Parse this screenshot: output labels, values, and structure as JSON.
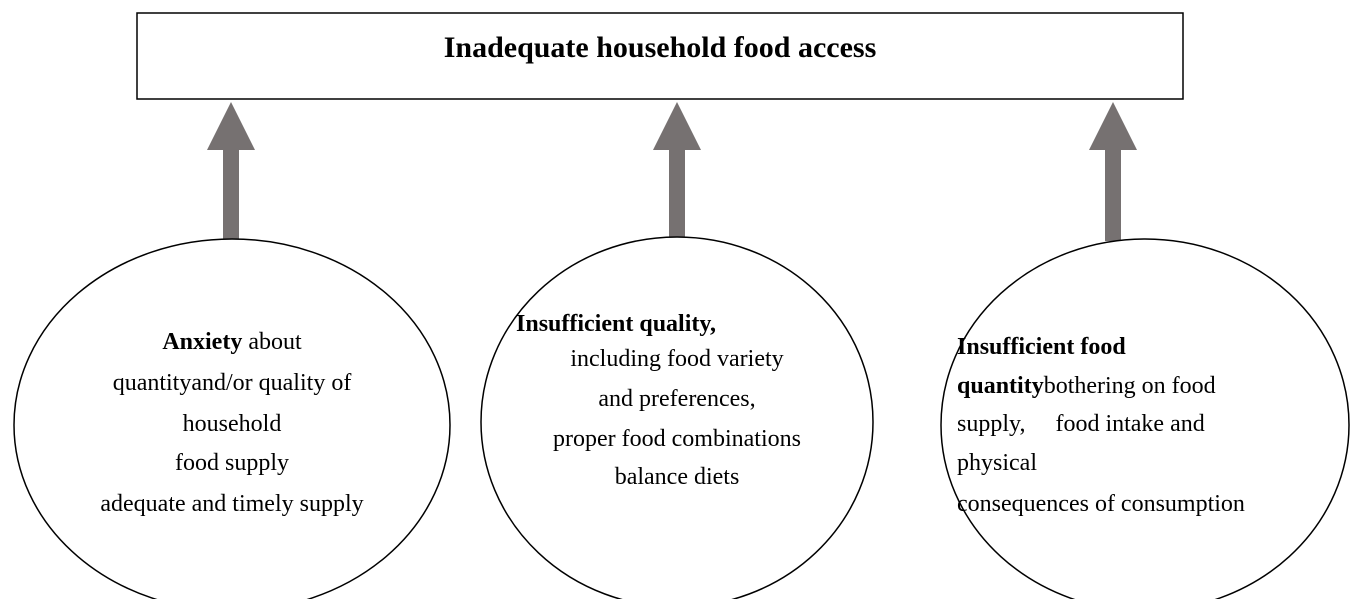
{
  "header": {
    "title": "Inadequate household food access"
  },
  "nodes": [
    {
      "lines": [
        [
          {
            "text": "Anxiety",
            "bold": true
          },
          {
            "text": " about",
            "bold": false
          }
        ],
        [
          {
            "text": "quantityand/or quality of",
            "bold": false
          }
        ],
        [
          {
            "text": "household",
            "bold": false
          }
        ],
        [
          {
            "text": "food supply",
            "bold": false
          }
        ],
        [
          {
            "text": "adequate and timely supply",
            "bold": false
          }
        ]
      ]
    },
    {
      "lines": [
        [
          {
            "text": "Insufficient quality,",
            "bold": true
          }
        ],
        [
          {
            "text": "including food variety",
            "bold": false
          }
        ],
        [
          {
            "text": "and preferences,",
            "bold": false
          }
        ],
        [
          {
            "text": "proper food combinations",
            "bold": false
          }
        ],
        [
          {
            "text": "balance diets",
            "bold": false
          }
        ]
      ]
    },
    {
      "lines": [
        [
          {
            "text": "Insufficient food",
            "bold": true
          }
        ],
        [
          {
            "text": "quantity",
            "bold": true
          },
          {
            "text": "bothering on food",
            "bold": false
          }
        ],
        [
          {
            "text": "supply,     food intake and",
            "bold": false
          }
        ],
        [
          {
            "text": "physical",
            "bold": false
          }
        ],
        [
          {
            "text": "consequences of consumption",
            "bold": false
          }
        ]
      ]
    }
  ]
}
